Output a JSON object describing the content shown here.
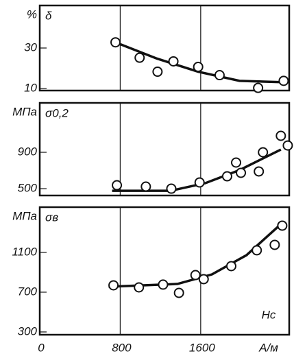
{
  "chart_data": [
    {
      "type": "scatter",
      "title": "δ",
      "y_label": "%",
      "xlim": [
        0,
        2480
      ],
      "xticks": [
        800,
        1600
      ],
      "ylim": [
        9,
        51
      ],
      "yticks": [
        10,
        30
      ],
      "grid": true,
      "color": "#111",
      "x": [
        753,
        993,
        1171,
        1329,
        1575,
        1788,
        2171,
        2425
      ],
      "values": [
        32.8,
        25.2,
        18.3,
        23.4,
        20.7,
        16.6,
        10.3,
        13.8
      ],
      "fit": {
        "x": [
          753,
          1164,
          1575,
          1986,
          2432
        ],
        "values": [
          32.8,
          24.8,
          18.3,
          13.8,
          13.1
        ]
      }
    },
    {
      "type": "scatter",
      "title": "σ0,2",
      "y_label": "МПа",
      "xlim": [
        0,
        2480
      ],
      "xticks": [
        800,
        1600
      ],
      "ylim": [
        425,
        1443
      ],
      "yticks": [
        500,
        900
      ],
      "grid": true,
      "color": "#111",
      "x": [
        767,
        1055,
        1308,
        1589,
        1863,
        1952,
        2000,
        2178,
        2219,
        2397,
        2466
      ],
      "values": [
        538,
        523,
        500,
        568,
        636,
        787,
        674,
        689,
        900,
        1081,
        975
      ],
      "fit": {
        "x": [
          719,
          1301,
          1644,
          1986,
          2397
        ],
        "values": [
          477,
          477,
          560,
          704,
          930
        ]
      }
    },
    {
      "type": "scatter",
      "title": "σв",
      "y_label": "МПа",
      "annotation": "Hc",
      "x_label": "А/м",
      "xlim": [
        0,
        2480
      ],
      "xticks": [
        0,
        800,
        1600
      ],
      "ylim": [
        272,
        1555
      ],
      "yticks": [
        300,
        700,
        1100
      ],
      "grid": true,
      "color": "#111",
      "x": [
        733,
        986,
        1226,
        1384,
        1548,
        1630,
        1904,
        2158,
        2336,
        2411
      ],
      "values": [
        769,
        748,
        776,
        693,
        872,
        831,
        962,
        1121,
        1176,
        1369
      ],
      "fit": {
        "x": [
          685,
          1370,
          1712,
          2055,
          2411
        ],
        "values": [
          755,
          783,
          879,
          1072,
          1397
        ]
      }
    }
  ]
}
